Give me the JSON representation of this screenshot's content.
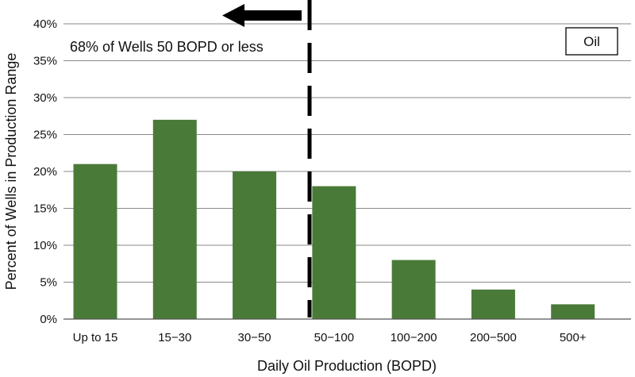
{
  "chart_data": {
    "type": "bar",
    "categories": [
      "Up to 15",
      "15−30",
      "30−50",
      "50−100",
      "100−200",
      "200−500",
      "500+"
    ],
    "series": [
      {
        "name": "Oil",
        "values": [
          21,
          27,
          20,
          18,
          8,
          4,
          2
        ],
        "color": "#4a7a38"
      }
    ],
    "xlabel": "Daily Oil Production (BOPD)",
    "ylabel": "Percent of Wells in Production Range",
    "ylim": [
      0,
      40
    ],
    "yticks": [
      "0%",
      "5%",
      "10%",
      "15%",
      "20%",
      "25%",
      "30%",
      "35%",
      "40%"
    ],
    "grid": true,
    "legend": {
      "position": "top-right",
      "label": "Oil"
    },
    "annotations": {
      "text": "68% of Wells 50 BOPD or less",
      "arrow_direction": "left"
    }
  }
}
